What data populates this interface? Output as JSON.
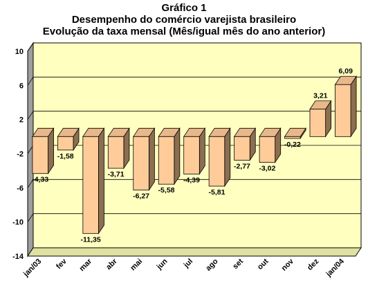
{
  "title": [
    "Gráfico 1",
    "Desempenho do comércio varejista brasileiro",
    "Evolução da taxa mensal (Mês/igual mês do ano anterior)"
  ],
  "colors": {
    "plot_bg": "#FFFFC0",
    "floor": "#E0E0A0",
    "bar_front": "#FFCC99",
    "bar_side": "#8C6E50",
    "bar_top": "#E8B88A",
    "grid": "#000000"
  },
  "chart_data": {
    "type": "bar",
    "categories": [
      "jan/03",
      "fev",
      "mar",
      "abr",
      "mai",
      "jun",
      "jul",
      "ago",
      "set",
      "out",
      "nov",
      "dez",
      "jan/04"
    ],
    "values": [
      -4.33,
      -1.58,
      -11.35,
      -3.71,
      -6.27,
      -5.58,
      -4.39,
      -5.81,
      -2.77,
      -3.02,
      -0.22,
      3.21,
      6.09
    ],
    "value_labels": [
      "-4,33",
      "-1,58",
      "-11,35",
      "-3,71",
      "-6,27",
      "-5,58",
      "-4,39",
      "-5,81",
      "-2,77",
      "-3,02",
      "-0,22",
      "3,21",
      "6,09"
    ],
    "y_ticks": [
      10,
      6,
      2,
      -2,
      -6,
      -10,
      -14
    ],
    "ylim": [
      -14,
      10
    ],
    "grid": true,
    "style": "3d-bar"
  }
}
